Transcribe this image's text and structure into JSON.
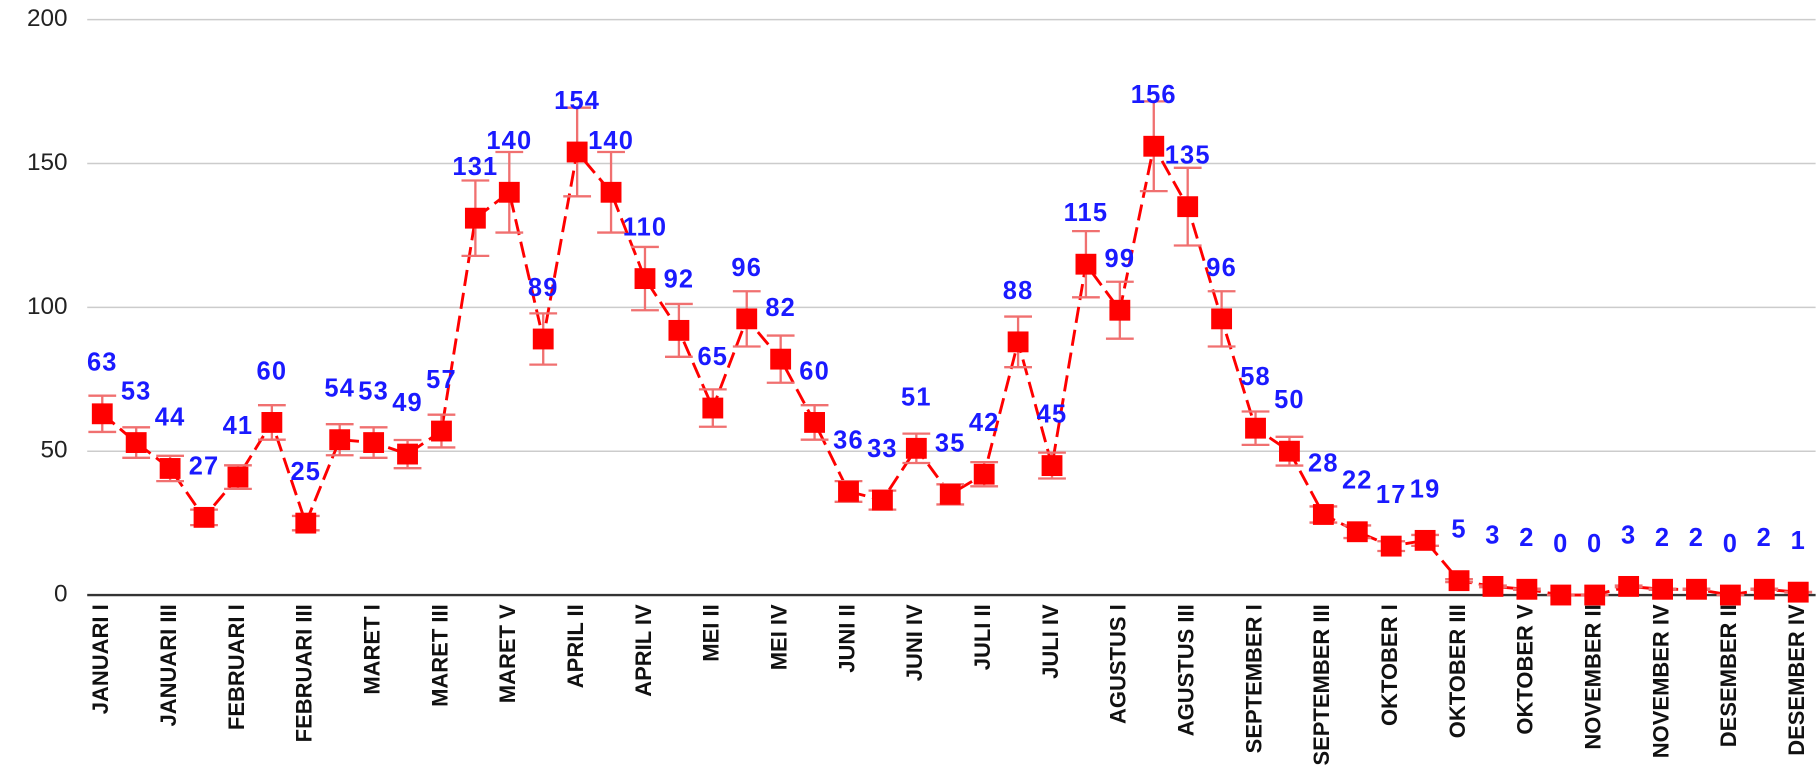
{
  "chart_data": {
    "type": "line",
    "categories": [
      "JANUARI I",
      null,
      "JANUARI III",
      null,
      "FEBRUARI I",
      null,
      "FEBRUARI III",
      null,
      "MARET I",
      null,
      "MARET III",
      null,
      "MARET V",
      null,
      "APRIL II",
      null,
      "APRIL IV",
      null,
      "MEI II",
      null,
      "MEI IV",
      null,
      "JUNI II",
      null,
      "JUNI IV",
      null,
      "JULI II",
      null,
      "JULI IV",
      null,
      "AGUSTUS I",
      null,
      "AGUSTUS III",
      null,
      "SEPTEMBER I",
      null,
      "SEPTEMBER III",
      null,
      "OKTOBER I",
      null,
      "OKTOBER III",
      null,
      "OKTOBER V",
      null,
      "NOVEMBER II",
      null,
      "NOVEMBER IV",
      null,
      "DESEMBER II",
      null,
      "DESEMBER IV"
    ],
    "values": [
      63,
      53,
      44,
      27,
      41,
      60,
      25,
      54,
      53,
      49,
      57,
      131,
      140,
      89,
      154,
      140,
      110,
      92,
      65,
      96,
      82,
      60,
      36,
      33,
      51,
      35,
      42,
      88,
      45,
      115,
      99,
      156,
      135,
      96,
      58,
      50,
      28,
      22,
      17,
      19,
      5,
      3,
      2,
      0,
      0,
      3,
      2,
      2,
      0,
      2,
      1
    ],
    "errors": [
      6.3,
      5.3,
      4.4,
      2.7,
      4.1,
      6,
      2.5,
      5.4,
      5.3,
      4.9,
      5.7,
      13.1,
      14,
      8.9,
      15.4,
      14,
      11,
      9.2,
      6.5,
      9.6,
      8.2,
      6,
      3.6,
      3.3,
      5.1,
      3.5,
      4.2,
      8.8,
      4.5,
      11.5,
      9.9,
      15.6,
      13.5,
      9.6,
      5.8,
      5,
      2.8,
      2.2,
      1.7,
      1.9,
      0.5,
      0.3,
      0.2,
      0,
      0,
      0.3,
      0.2,
      0.2,
      0,
      0.2,
      0.1
    ],
    "color": "#ff0000",
    "error_color": "#f07070",
    "label_color": "#1a1aff",
    "ylim": [
      0,
      200
    ],
    "yticks": [
      0,
      50,
      100,
      150,
      200
    ],
    "grid": true
  }
}
